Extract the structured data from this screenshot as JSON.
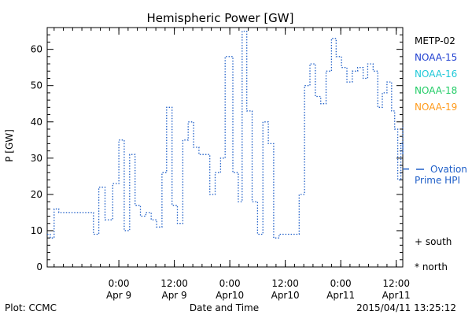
{
  "chart_data": {
    "type": "line",
    "title": "Hemispheric Power [GW]",
    "xlabel": "Date and Time",
    "ylabel": "P [GW]",
    "ylim": [
      0,
      66
    ],
    "yticks": [
      0,
      10,
      20,
      30,
      40,
      50,
      60
    ],
    "xlim": [
      "2015-04-08T08:30",
      "2015-04-11T13:25"
    ],
    "xticks": [
      {
        "t": "2015-04-09T00:00",
        "line1": "0:00",
        "line2": "Apr 9"
      },
      {
        "t": "2015-04-09T12:00",
        "line1": "12:00",
        "line2": "Apr 9"
      },
      {
        "t": "2015-04-10T00:00",
        "line1": "0:00",
        "line2": "Apr10"
      },
      {
        "t": "2015-04-10T12:00",
        "line1": "12:00",
        "line2": "Apr10"
      },
      {
        "t": "2015-04-11T00:00",
        "line1": "0:00",
        "line2": "Apr11"
      },
      {
        "t": "2015-04-11T12:00",
        "line1": "12:00",
        "line2": "Apr11"
      }
    ],
    "legend": {
      "placement": "right",
      "satellites": [
        {
          "name": "METP-02",
          "color": "#000000"
        },
        {
          "name": "NOAA-15",
          "color": "#1f3fd0"
        },
        {
          "name": "NOAA-16",
          "color": "#1fc8d8"
        },
        {
          "name": "NOAA-18",
          "color": "#22cc66"
        },
        {
          "name": "NOAA-19",
          "color": "#ff9a1a"
        }
      ],
      "reference_line": {
        "label": "Ovation",
        "label2": "Prime HPI",
        "value": 27,
        "color": "#1f5fc8"
      },
      "markers": [
        {
          "symbol": "+",
          "label": "south"
        },
        {
          "symbol": "*",
          "label": "north"
        }
      ]
    },
    "series": [
      {
        "color": "#1f5fc8",
        "points": [
          [
            "2015-04-08T08:30",
            9
          ],
          [
            "2015-04-08T09:10",
            8
          ],
          [
            "2015-04-08T10:00",
            16
          ],
          [
            "2015-04-08T11:00",
            15
          ],
          [
            "2015-04-08T16:00",
            15
          ],
          [
            "2015-04-08T18:30",
            9
          ],
          [
            "2015-04-08T19:40",
            22
          ],
          [
            "2015-04-08T21:00",
            13
          ],
          [
            "2015-04-08T22:40",
            23
          ],
          [
            "2015-04-09T00:00",
            35
          ],
          [
            "2015-04-09T01:10",
            10
          ],
          [
            "2015-04-09T02:20",
            31
          ],
          [
            "2015-04-09T03:30",
            17
          ],
          [
            "2015-04-09T04:40",
            14
          ],
          [
            "2015-04-09T05:50",
            15
          ],
          [
            "2015-04-09T07:00",
            13
          ],
          [
            "2015-04-09T08:10",
            11
          ],
          [
            "2015-04-09T09:20",
            26
          ],
          [
            "2015-04-09T10:20",
            44
          ],
          [
            "2015-04-09T11:30",
            17
          ],
          [
            "2015-04-09T12:40",
            12
          ],
          [
            "2015-04-09T13:50",
            35
          ],
          [
            "2015-04-09T15:00",
            40
          ],
          [
            "2015-04-09T16:10",
            33
          ],
          [
            "2015-04-09T17:20",
            31
          ],
          [
            "2015-04-09T19:40",
            20
          ],
          [
            "2015-04-09T20:50",
            26
          ],
          [
            "2015-04-09T22:00",
            30
          ],
          [
            "2015-04-09T23:00",
            58
          ],
          [
            "2015-04-10T00:40",
            26
          ],
          [
            "2015-04-10T01:50",
            18
          ],
          [
            "2015-04-10T02:40",
            65
          ],
          [
            "2015-04-10T03:40",
            43
          ],
          [
            "2015-04-10T04:50",
            18
          ],
          [
            "2015-04-10T06:00",
            9
          ],
          [
            "2015-04-10T07:10",
            40
          ],
          [
            "2015-04-10T08:20",
            34
          ],
          [
            "2015-04-10T09:30",
            8
          ],
          [
            "2015-04-10T10:40",
            9
          ],
          [
            "2015-04-10T15:00",
            20
          ],
          [
            "2015-04-10T16:10",
            50
          ],
          [
            "2015-04-10T17:20",
            56
          ],
          [
            "2015-04-10T18:30",
            47
          ],
          [
            "2015-04-10T19:40",
            45
          ],
          [
            "2015-04-10T20:50",
            54
          ],
          [
            "2015-04-10T22:00",
            63
          ],
          [
            "2015-04-10T23:00",
            58
          ],
          [
            "2015-04-11T00:10",
            55
          ],
          [
            "2015-04-11T01:20",
            51
          ],
          [
            "2015-04-11T02:30",
            54
          ],
          [
            "2015-04-11T03:40",
            55
          ],
          [
            "2015-04-11T04:50",
            52
          ],
          [
            "2015-04-11T05:50",
            56
          ],
          [
            "2015-04-11T07:00",
            54
          ],
          [
            "2015-04-11T08:00",
            44
          ],
          [
            "2015-04-11T09:00",
            48
          ],
          [
            "2015-04-11T10:00",
            51
          ],
          [
            "2015-04-11T11:00",
            43
          ],
          [
            "2015-04-11T11:40",
            38
          ],
          [
            "2015-04-11T12:20",
            24
          ],
          [
            "2015-04-11T13:00",
            34
          ],
          [
            "2015-04-11T13:25",
            31
          ],
          [
            "2015-04-11T13:25",
            34
          ],
          [
            "2015-04-11T13:25",
            39
          ]
        ]
      }
    ],
    "grid": false
  },
  "footer": {
    "left": "Plot: CCMC",
    "right": "2015/04/11 13:25:12"
  }
}
